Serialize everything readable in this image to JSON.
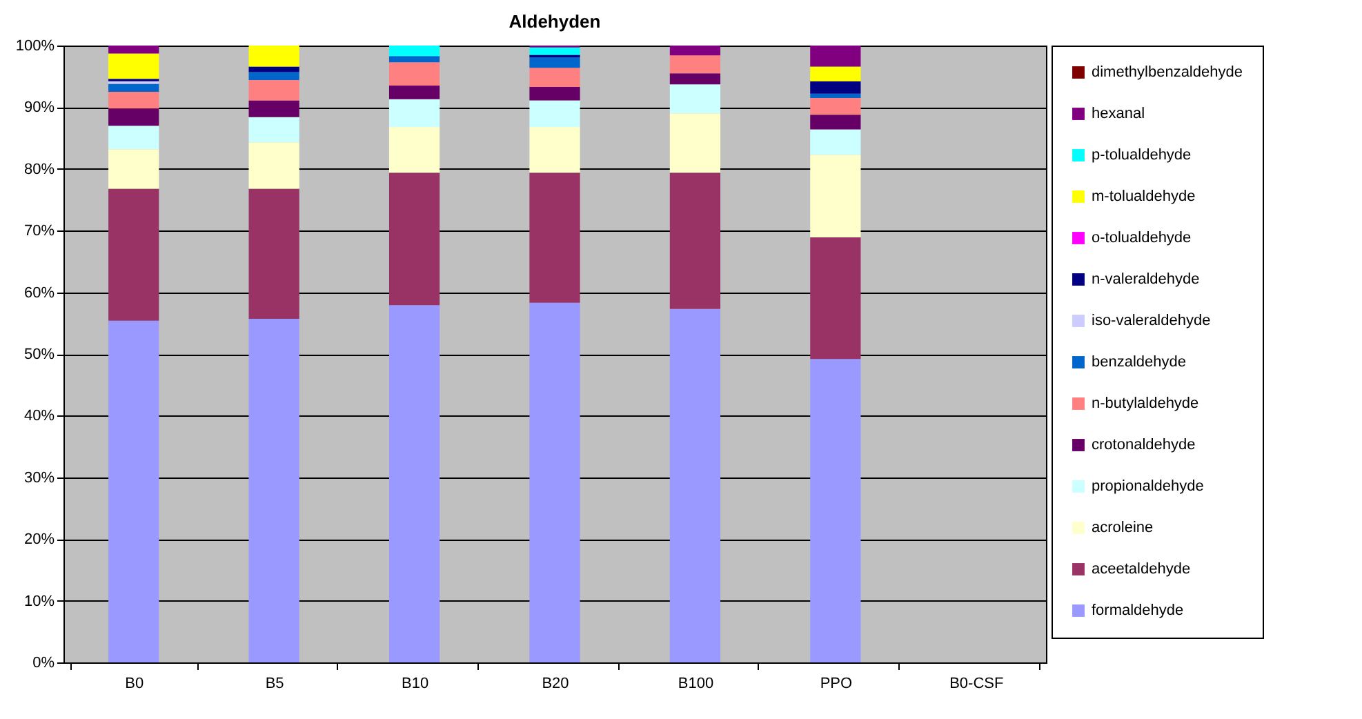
{
  "chart_data": {
    "type": "bar",
    "title": "Aldehyden",
    "stacked": true,
    "categories": [
      "B0",
      "B5",
      "B10",
      "B20",
      "B100",
      "PPO",
      "B0-CSF"
    ],
    "series": [
      {
        "name": "formaldehyde",
        "color": "#9999ff",
        "values": [
          55.4,
          55.7,
          57.9,
          58.3,
          57.3,
          49.2,
          null
        ]
      },
      {
        "name": "aceetaldehyde",
        "color": "#993366",
        "values": [
          21.4,
          21.1,
          21.5,
          21.1,
          22.1,
          19.7,
          null
        ]
      },
      {
        "name": "acroleine",
        "color": "#ffffcc",
        "values": [
          6.4,
          7.5,
          7.4,
          7.4,
          9.6,
          13.4,
          null
        ]
      },
      {
        "name": "propionaldehyde",
        "color": "#ccffff",
        "values": [
          3.8,
          4.1,
          4.5,
          4.3,
          4.7,
          4.1,
          null
        ]
      },
      {
        "name": "crotonaldehyde",
        "color": "#660066",
        "values": [
          2.8,
          2.7,
          2.2,
          2.2,
          1.8,
          2.4,
          null
        ]
      },
      {
        "name": "n-butylaldehyde",
        "color": "#ff8080",
        "values": [
          2.7,
          3.3,
          3.8,
          3.1,
          2.9,
          2.7,
          null
        ]
      },
      {
        "name": "benzaldehyde",
        "color": "#0066cc",
        "values": [
          1.3,
          1.3,
          1.0,
          1.7,
          0,
          0.7,
          null
        ]
      },
      {
        "name": "iso-valeraldehyde",
        "color": "#ccccff",
        "values": [
          0.4,
          0,
          0,
          0,
          0,
          0,
          null
        ]
      },
      {
        "name": "n-valeraldehyde",
        "color": "#000080",
        "values": [
          0.4,
          0.9,
          0,
          0.4,
          0,
          2.0,
          null
        ]
      },
      {
        "name": "o-tolualdehyde",
        "color": "#ff00ff",
        "values": [
          0,
          0,
          0,
          0,
          0,
          0,
          null
        ]
      },
      {
        "name": "m-tolualdehyde",
        "color": "#ffff00",
        "values": [
          4.1,
          3.4,
          0,
          0,
          0,
          2.4,
          null
        ]
      },
      {
        "name": "p-tolualdehyde",
        "color": "#00ffff",
        "values": [
          0,
          0,
          1.7,
          1.2,
          0,
          0,
          null
        ]
      },
      {
        "name": "hexanal",
        "color": "#800080",
        "values": [
          1.3,
          0,
          0,
          0.3,
          1.6,
          3.4,
          null
        ]
      },
      {
        "name": "dimethylbenzaldehyde",
        "color": "#800000",
        "values": [
          0,
          0,
          0,
          0,
          0,
          0,
          null
        ]
      }
    ],
    "ylim": [
      0,
      100
    ],
    "yticks": [
      {
        "value": 0,
        "label": "0%"
      },
      {
        "value": 10,
        "label": "10%"
      },
      {
        "value": 20,
        "label": "20%"
      },
      {
        "value": 30,
        "label": "30%"
      },
      {
        "value": 40,
        "label": "40%"
      },
      {
        "value": 50,
        "label": "50%"
      },
      {
        "value": 60,
        "label": "60%"
      },
      {
        "value": 70,
        "label": "70%"
      },
      {
        "value": 80,
        "label": "80%"
      },
      {
        "value": 90,
        "label": "90%"
      },
      {
        "value": 100,
        "label": "100%"
      }
    ],
    "grid": "y",
    "legend": "right"
  }
}
